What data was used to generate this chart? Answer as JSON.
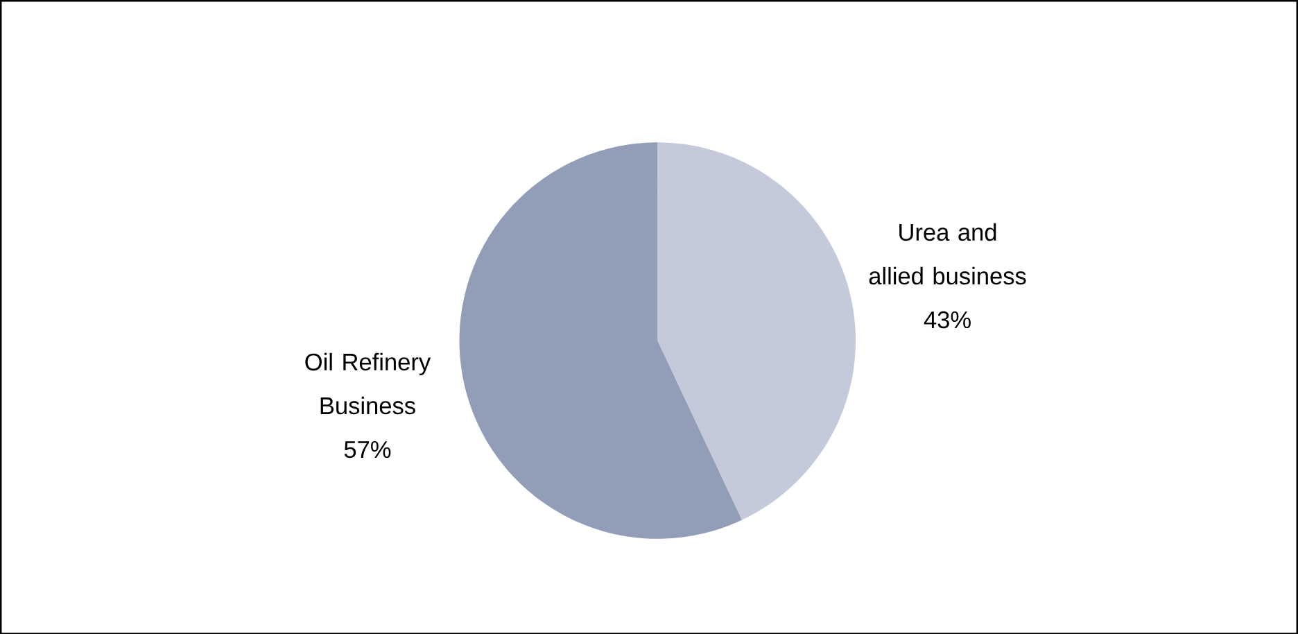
{
  "chart_data": {
    "type": "pie",
    "categories": [
      "Urea and allied business",
      "Oil Refinery Business"
    ],
    "values": [
      43,
      57
    ],
    "value_labels": [
      "43%",
      "57%"
    ],
    "colors": [
      "#c5cadb",
      "#929db8"
    ]
  }
}
